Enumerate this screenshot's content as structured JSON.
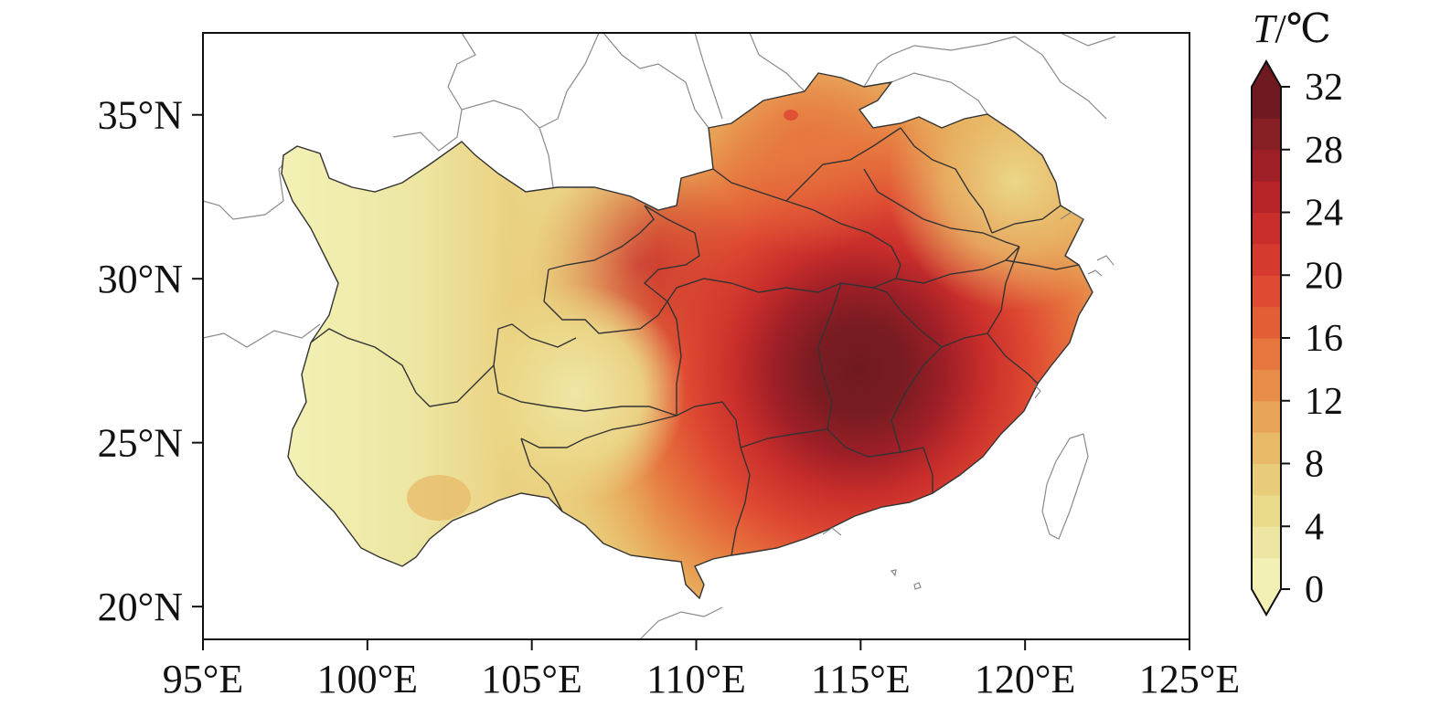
{
  "map": {
    "colorbar": {
      "title_var": "T",
      "title_unit": "/℃",
      "tick_labels": [
        "32",
        "28",
        "24",
        "20",
        "16",
        "12",
        "8",
        "4",
        "0"
      ],
      "palette": [
        "#f2f0b4",
        "#ede6a2",
        "#eadb8c",
        "#e9cc7a",
        "#e8ba68",
        "#e8a456",
        "#e78d48",
        "#e6753e",
        "#e35d37",
        "#df4a32",
        "#d63a2e",
        "#c92e2b",
        "#b62428",
        "#9f1f27",
        "#872024",
        "#6f1a20"
      ],
      "range": [
        0,
        32
      ]
    },
    "axes": {
      "x_tick_labels": [
        "95°E",
        "100°E",
        "105°E",
        "110°E",
        "115°E",
        "120°E",
        "125°E"
      ],
      "y_tick_labels": [
        "35°N",
        "30°N",
        "25°N",
        "20°N"
      ],
      "x_range": [
        95,
        125
      ],
      "y_range": [
        19,
        37.5
      ]
    },
    "hotspot_center": {
      "lon": 115,
      "lat": 27
    }
  }
}
